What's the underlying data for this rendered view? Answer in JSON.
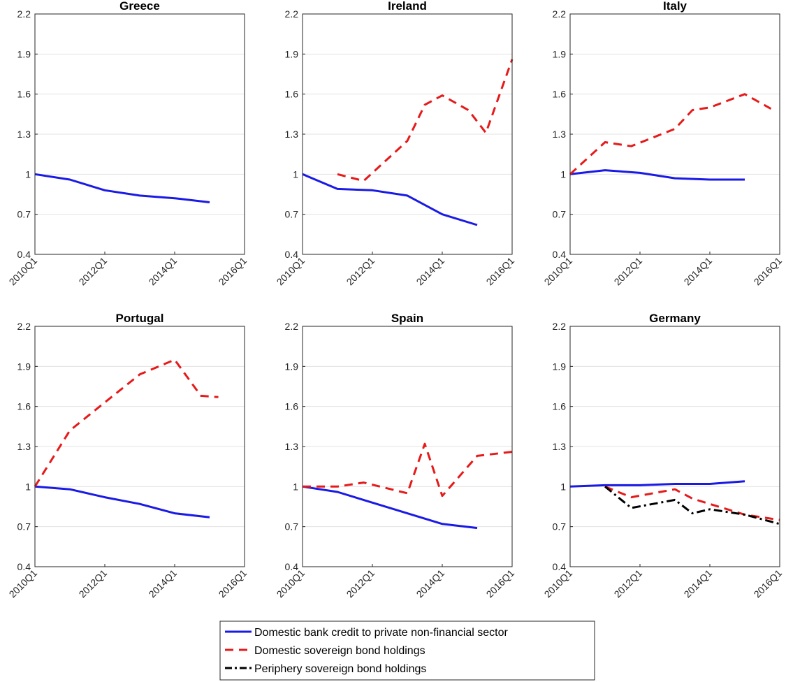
{
  "chart_data": [
    {
      "type": "line",
      "title": "Greece",
      "x_ticks": [
        "2010Q1",
        "2012Q1",
        "2014Q1",
        "2016Q1"
      ],
      "y_ticks": [
        "0.4",
        "0.7",
        "1",
        "1.3",
        "1.6",
        "1.9",
        "2.2"
      ],
      "xlim": [
        2010,
        2016
      ],
      "ylim": [
        0.4,
        2.2
      ],
      "grid": "horizontal",
      "series": [
        {
          "key": "credit",
          "color": "#1a1ae6",
          "x": [
            2010,
            2011,
            2012,
            2013,
            2014,
            2015
          ],
          "y": [
            1.0,
            0.96,
            0.88,
            0.84,
            0.82,
            0.79
          ]
        }
      ]
    },
    {
      "type": "line",
      "title": "Ireland",
      "x_ticks": [
        "2010Q1",
        "2012Q1",
        "2014Q1",
        "2016Q1"
      ],
      "y_ticks": [
        "0.4",
        "0.7",
        "1",
        "1.3",
        "1.6",
        "1.9",
        "2.2"
      ],
      "xlim": [
        2010,
        2016
      ],
      "ylim": [
        0.4,
        2.2
      ],
      "grid": "horizontal",
      "series": [
        {
          "key": "credit",
          "color": "#1a1ae6",
          "x": [
            2010,
            2011,
            2012,
            2013,
            2014,
            2015
          ],
          "y": [
            1.0,
            0.89,
            0.88,
            0.84,
            0.7,
            0.62
          ]
        },
        {
          "key": "domestic",
          "color": "#e61a1a",
          "x": [
            2011,
            2011.75,
            2013,
            2013.5,
            2014,
            2014.75,
            2015.25,
            2016
          ],
          "y": [
            1.0,
            0.95,
            1.25,
            1.52,
            1.59,
            1.48,
            1.31,
            1.86
          ]
        }
      ]
    },
    {
      "type": "line",
      "title": "Italy",
      "x_ticks": [
        "2010Q1",
        "2012Q1",
        "2014Q1",
        "2016Q1"
      ],
      "y_ticks": [
        "0.4",
        "0.7",
        "1",
        "1.3",
        "1.6",
        "1.9",
        "2.2"
      ],
      "xlim": [
        2010,
        2016
      ],
      "ylim": [
        0.4,
        2.2
      ],
      "grid": "horizontal",
      "series": [
        {
          "key": "credit",
          "color": "#1a1ae6",
          "x": [
            2010,
            2011,
            2012,
            2013,
            2014,
            2015
          ],
          "y": [
            1.0,
            1.03,
            1.01,
            0.97,
            0.96,
            0.96
          ]
        },
        {
          "key": "domestic",
          "color": "#e61a1a",
          "x": [
            2010,
            2011,
            2011.75,
            2013,
            2013.5,
            2014,
            2015,
            2015.75
          ],
          "y": [
            1.0,
            1.24,
            1.21,
            1.34,
            1.48,
            1.5,
            1.6,
            1.49
          ]
        }
      ]
    },
    {
      "type": "line",
      "title": "Portugal",
      "x_ticks": [
        "2010Q1",
        "2012Q1",
        "2014Q1",
        "2016Q1"
      ],
      "y_ticks": [
        "0.4",
        "0.7",
        "1",
        "1.3",
        "1.6",
        "1.9",
        "2.2"
      ],
      "xlim": [
        2010,
        2016
      ],
      "ylim": [
        0.4,
        2.2
      ],
      "grid": "horizontal",
      "series": [
        {
          "key": "credit",
          "color": "#1a1ae6",
          "x": [
            2010,
            2011,
            2012,
            2013,
            2014,
            2015
          ],
          "y": [
            1.0,
            0.98,
            0.92,
            0.87,
            0.8,
            0.77
          ]
        },
        {
          "key": "domestic",
          "color": "#e61a1a",
          "x": [
            2010,
            2011,
            2012,
            2013,
            2014,
            2014.75,
            2015.25
          ],
          "y": [
            1.0,
            1.42,
            1.63,
            1.84,
            1.95,
            1.68,
            1.67
          ]
        }
      ]
    },
    {
      "type": "line",
      "title": "Spain",
      "x_ticks": [
        "2010Q1",
        "2012Q1",
        "2014Q1",
        "2016Q1"
      ],
      "y_ticks": [
        "0.4",
        "0.7",
        "1",
        "1.3",
        "1.6",
        "1.9",
        "2.2"
      ],
      "xlim": [
        2010,
        2016
      ],
      "ylim": [
        0.4,
        2.2
      ],
      "grid": "horizontal",
      "series": [
        {
          "key": "credit",
          "color": "#1a1ae6",
          "x": [
            2010,
            2011,
            2012,
            2013,
            2014,
            2015
          ],
          "y": [
            1.0,
            0.96,
            0.88,
            0.8,
            0.72,
            0.69
          ]
        },
        {
          "key": "domestic",
          "color": "#e61a1a",
          "x": [
            2010,
            2011,
            2011.75,
            2013,
            2013.5,
            2014,
            2015,
            2016
          ],
          "y": [
            1.0,
            1.0,
            1.03,
            0.95,
            1.32,
            0.93,
            1.23,
            1.26
          ]
        }
      ]
    },
    {
      "type": "line",
      "title": "Germany",
      "x_ticks": [
        "2010Q1",
        "2012Q1",
        "2014Q1",
        "2016Q1"
      ],
      "y_ticks": [
        "0.4",
        "0.7",
        "1",
        "1.3",
        "1.6",
        "1.9",
        "2.2"
      ],
      "xlim": [
        2010,
        2016
      ],
      "ylim": [
        0.4,
        2.2
      ],
      "grid": "horizontal",
      "series": [
        {
          "key": "credit",
          "color": "#1a1ae6",
          "x": [
            2010,
            2011,
            2012,
            2013,
            2014,
            2015
          ],
          "y": [
            1.0,
            1.01,
            1.01,
            1.02,
            1.02,
            1.04
          ]
        },
        {
          "key": "domestic",
          "color": "#e61a1a",
          "x": [
            2011,
            2011.75,
            2013,
            2013.5,
            2014,
            2015,
            2016
          ],
          "y": [
            1.0,
            0.92,
            0.98,
            0.91,
            0.87,
            0.79,
            0.75
          ]
        },
        {
          "key": "periphery",
          "color": "#000000",
          "x": [
            2011,
            2011.75,
            2013,
            2013.5,
            2014,
            2015,
            2016
          ],
          "y": [
            1.0,
            0.84,
            0.9,
            0.8,
            0.83,
            0.79,
            0.72
          ]
        }
      ]
    }
  ],
  "legend": {
    "position": "bottom-center",
    "entries": [
      {
        "key": "credit",
        "label": "Domestic bank credit to private non-financial sector",
        "color": "#1a1ae6",
        "style": "solid"
      },
      {
        "key": "domestic",
        "label": "Domestic sovereign bond holdings",
        "color": "#e61a1a",
        "style": "dashed"
      },
      {
        "key": "periphery",
        "label": "Periphery sovereign bond holdings",
        "color": "#000000",
        "style": "dash-dot"
      }
    ]
  }
}
